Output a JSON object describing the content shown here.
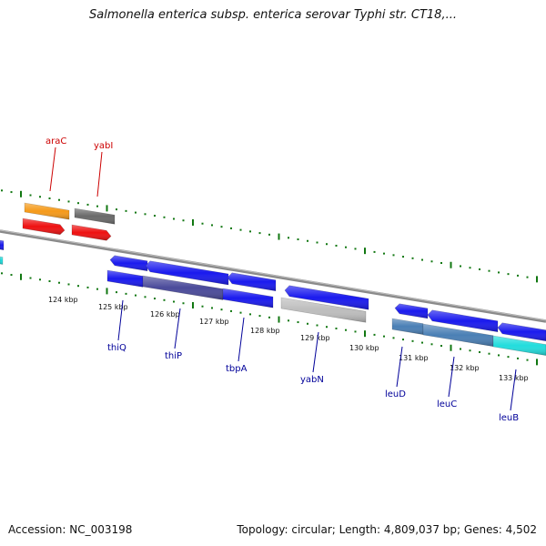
{
  "title": "Salmonella enterica subsp. enterica serovar Typhi str. CT18,...",
  "footer": {
    "accession": "Accession: NC_003198",
    "summary": "Topology: circular; Length: 4,809,037 bp; Genes: 4,502"
  },
  "colors": {
    "forward_label": "#cc0000",
    "reverse_label": "#000099",
    "tick_green": "#117711",
    "backbone": "#808080"
  },
  "ruler": {
    "labels": [
      "124 kbp",
      "125 kbp",
      "126 kbp",
      "127 kbp",
      "128 kbp",
      "129 kbp",
      "130 kbp",
      "131 kbp",
      "132 kbp",
      "133 kbp"
    ]
  },
  "forward_genes": [
    {
      "name": "araC",
      "color": "#cc0000"
    },
    {
      "name": "yabI",
      "color": "#cc0000"
    }
  ],
  "reverse_genes": [
    {
      "name": "thiQ",
      "color": "#000099"
    },
    {
      "name": "thiP",
      "color": "#000099"
    },
    {
      "name": "tbpA",
      "color": "#000099"
    },
    {
      "name": "yabN",
      "color": "#000099"
    },
    {
      "name": "leuD",
      "color": "#000099"
    },
    {
      "name": "leuC",
      "color": "#000099"
    },
    {
      "name": "leuB",
      "color": "#000099"
    }
  ]
}
